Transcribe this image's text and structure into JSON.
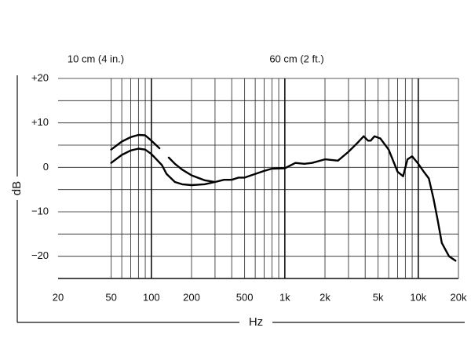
{
  "chart_data": {
    "type": "line",
    "x_label": "Hz",
    "y_label": "dB",
    "xscale": "log",
    "grid": true,
    "xlim": [
      20,
      20000
    ],
    "ylim": [
      -25,
      20
    ],
    "xticks": [
      20,
      50,
      100,
      200,
      500,
      {
        "value": 1000,
        "label": "1k"
      },
      {
        "value": 2000,
        "label": "2k"
      },
      {
        "value": 5000,
        "label": "5k"
      },
      {
        "value": 10000,
        "label": "10k"
      },
      {
        "value": 20000,
        "label": "20k"
      }
    ],
    "yticks": [
      {
        "value": 20,
        "label": "+20"
      },
      {
        "value": 10,
        "label": "+10"
      },
      0,
      {
        "value": -10,
        "label": "−10"
      },
      {
        "value": -20,
        "label": "−20"
      }
    ],
    "series": [
      {
        "name": "10 cm (4 in.)",
        "color": "#000000",
        "x": [
          50,
          60,
          70,
          80,
          90,
          100,
          115,
          125,
          135,
          150,
          170,
          200,
          250,
          300
        ],
        "values": [
          4,
          5.8,
          6.8,
          7.3,
          7.2,
          6,
          4.3,
          null,
          2.2,
          0.8,
          -0.5,
          -1.8,
          -2.9,
          -3.3
        ]
      },
      {
        "name": "60 cm (2 ft.)",
        "color": "#000000",
        "x": [
          50,
          60,
          70,
          80,
          90,
          100,
          120,
          130,
          150,
          170,
          200,
          250,
          300,
          350,
          400,
          450,
          500,
          600,
          700,
          800,
          1000,
          1200,
          1400,
          1600,
          2000,
          2500,
          3000,
          3500,
          3900,
          4200,
          4400,
          4700,
          5200,
          6000,
          7000,
          7700,
          8300,
          9000,
          10000,
          11000,
          12000,
          13000,
          14000,
          15000,
          17000,
          19000
        ],
        "values": [
          1,
          2.8,
          3.8,
          4.2,
          4,
          3,
          0.5,
          -1.5,
          -3.3,
          -3.8,
          -4,
          -3.8,
          -3.3,
          -2.8,
          -2.8,
          -2.3,
          -2.3,
          -1.5,
          -0.8,
          -0.3,
          -0.2,
          1,
          0.8,
          1,
          1.8,
          1.5,
          3.5,
          5.5,
          7,
          6,
          6,
          7,
          6.5,
          4,
          -1,
          -2,
          1.8,
          2.5,
          0.8,
          -1,
          -2.5,
          -7,
          -12,
          -17,
          -20,
          -21
        ]
      }
    ]
  }
}
